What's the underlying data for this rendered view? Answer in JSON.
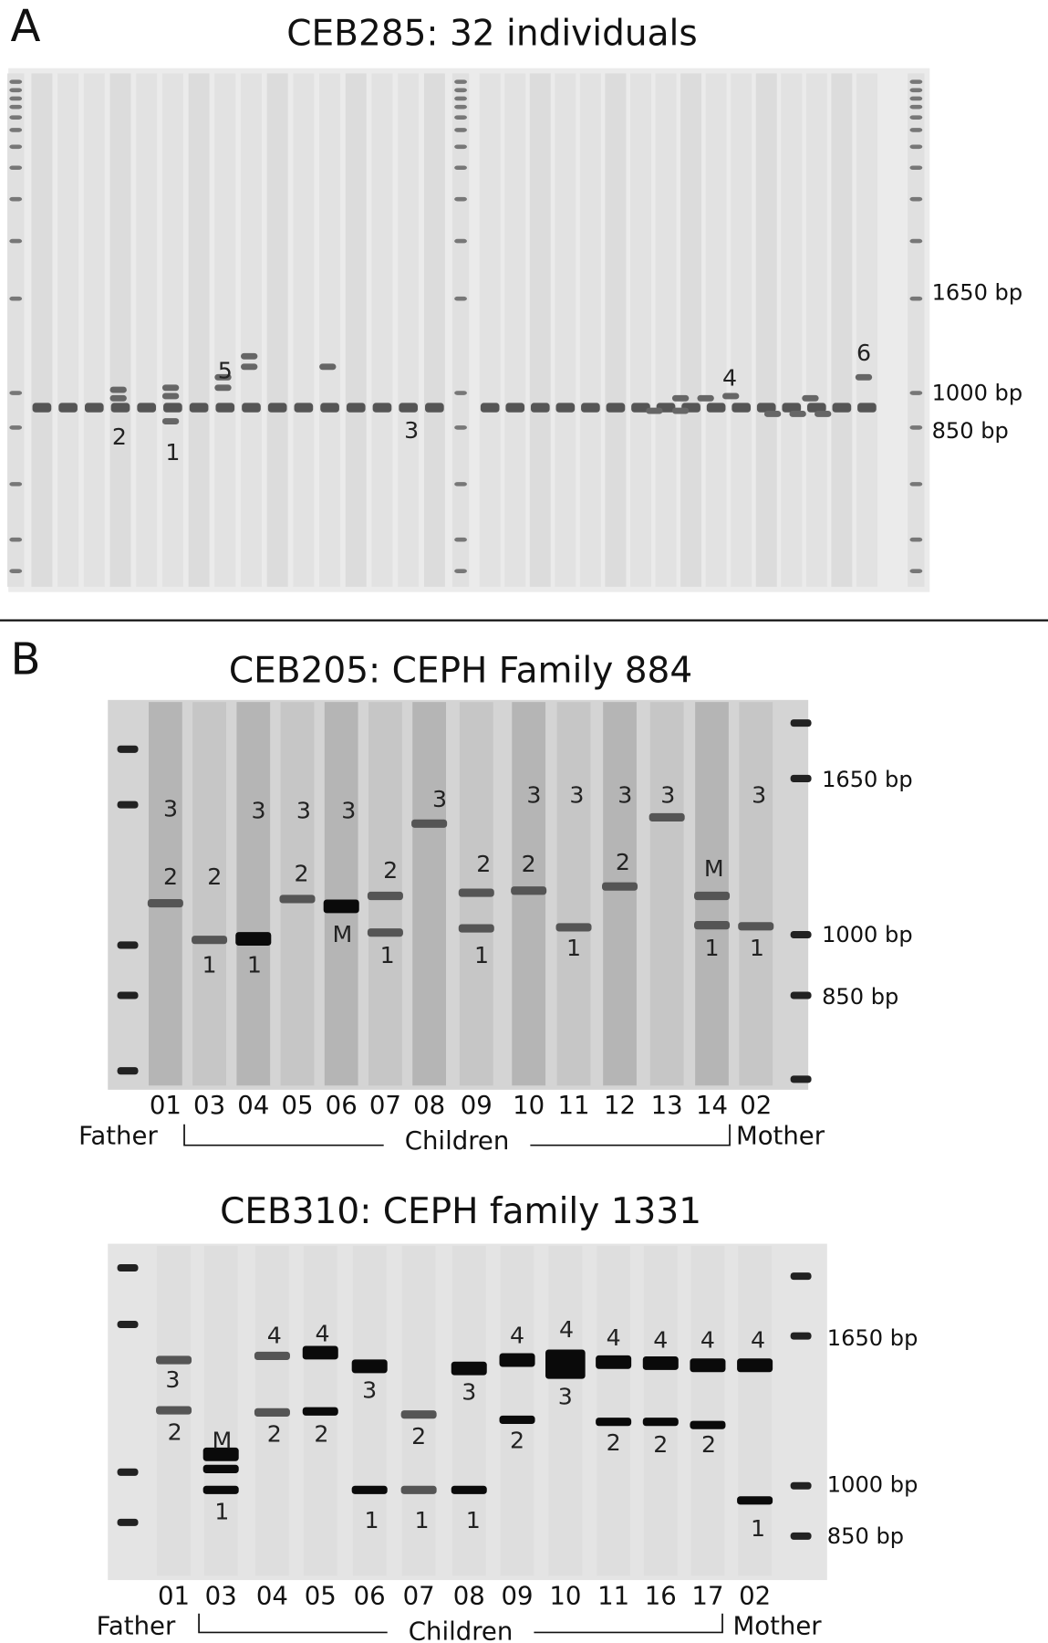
{
  "panel_a": {
    "letter": "A",
    "title": "CEB285: 32 individuals",
    "size_labels": [
      "1650 bp",
      "1000 bp",
      "850 bp"
    ],
    "allele_labels": [
      "2",
      "1",
      "5",
      "3",
      "4",
      "6"
    ]
  },
  "panel_b": {
    "letter": "B",
    "gels": [
      {
        "title": "CEB205: CEPH Family 884",
        "size_labels": [
          "1650 bp",
          "1000 bp",
          "850 bp"
        ],
        "father": "Father",
        "children": "Children",
        "mother": "Mother",
        "lanes": [
          {
            "id": "01",
            "alleles": [
              "3",
              "2"
            ]
          },
          {
            "id": "03",
            "alleles": [
              "2",
              "1"
            ]
          },
          {
            "id": "04",
            "alleles": [
              "3",
              "1"
            ]
          },
          {
            "id": "05",
            "alleles": [
              "3",
              "2"
            ]
          },
          {
            "id": "06",
            "alleles": [
              "3",
              "M"
            ]
          },
          {
            "id": "07",
            "alleles": [
              "2",
              "1"
            ]
          },
          {
            "id": "08",
            "alleles": [
              "3"
            ]
          },
          {
            "id": "09",
            "alleles": [
              "2",
              "1"
            ]
          },
          {
            "id": "10",
            "alleles": [
              "3",
              "2"
            ]
          },
          {
            "id": "11",
            "alleles": [
              "3",
              "1"
            ]
          },
          {
            "id": "12",
            "alleles": [
              "3",
              "2"
            ]
          },
          {
            "id": "13",
            "alleles": [
              "3"
            ]
          },
          {
            "id": "14",
            "alleles": [
              "M",
              "1"
            ]
          },
          {
            "id": "02",
            "alleles": [
              "3",
              "1"
            ]
          }
        ]
      },
      {
        "title": "CEB310: CEPH family 1331",
        "size_labels": [
          "1650 bp",
          "1000 bp",
          "850 bp"
        ],
        "father": "Father",
        "children": "Children",
        "mother": "Mother",
        "lanes": [
          {
            "id": "01",
            "alleles": [
              "3",
              "2"
            ]
          },
          {
            "id": "03",
            "alleles": [
              "M",
              "1"
            ]
          },
          {
            "id": "04",
            "alleles": [
              "4",
              "2"
            ]
          },
          {
            "id": "05",
            "alleles": [
              "4",
              "2"
            ]
          },
          {
            "id": "06",
            "alleles": [
              "3",
              "1"
            ]
          },
          {
            "id": "07",
            "alleles": [
              "2",
              "1"
            ]
          },
          {
            "id": "08",
            "alleles": [
              "3",
              "1"
            ]
          },
          {
            "id": "09",
            "alleles": [
              "4",
              "2"
            ]
          },
          {
            "id": "10",
            "alleles": [
              "4",
              "3"
            ]
          },
          {
            "id": "11",
            "alleles": [
              "4",
              "2"
            ]
          },
          {
            "id": "16",
            "alleles": [
              "4",
              "2"
            ]
          },
          {
            "id": "17",
            "alleles": [
              "4",
              "2"
            ]
          },
          {
            "id": "02",
            "alleles": [
              "4",
              "1"
            ]
          }
        ]
      }
    ]
  }
}
